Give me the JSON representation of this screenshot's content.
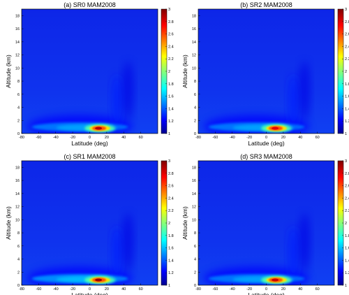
{
  "chart_data": [
    {
      "type": "heatmap",
      "title": "(a) SR0 MAM2008",
      "xlabel": "Latitude (deg)",
      "ylabel": "Altitude (km)",
      "xlim": [
        -80,
        80
      ],
      "ylim": [
        0,
        19
      ],
      "xticks": [
        "-80",
        "-60",
        "-40",
        "-20",
        "0",
        "20",
        "40",
        "60"
      ],
      "yticks": [
        "0",
        "2",
        "4",
        "6",
        "8",
        "10",
        "12",
        "14",
        "16",
        "18"
      ],
      "colorbar": {
        "range": [
          1,
          3
        ],
        "colormap": "jet",
        "ticks": [
          "1",
          "1.2",
          "1.4",
          "1.6",
          "1.8",
          "2",
          "2.2",
          "2.4",
          "2.6",
          "2.8",
          "3"
        ]
      },
      "features": [
        {
          "kind": "boundary_layer_band",
          "lat_range": [
            -68,
            45
          ],
          "altitude_km": [
            0.4,
            1.6
          ],
          "value": 1.5
        },
        {
          "kind": "maximum",
          "lat": 12,
          "altitude_km": 0.8,
          "value": 2.9
        },
        {
          "kind": "plume",
          "lat": 32,
          "altitude_km": [
            1,
            9
          ],
          "value": 1.3
        },
        {
          "kind": "plume",
          "lat": 45,
          "altitude_km": [
            2,
            11
          ],
          "value": 1.2
        }
      ]
    },
    {
      "type": "heatmap",
      "title": "(b) SR2 MAM2008",
      "xlabel": "Latitude (deg)",
      "ylabel": "Altitude (km)",
      "xlim": [
        -80,
        80
      ],
      "ylim": [
        0,
        19
      ],
      "xticks": [
        "-80",
        "-60",
        "-40",
        "-20",
        "0",
        "20",
        "40",
        "60"
      ],
      "yticks": [
        "0",
        "2",
        "4",
        "6",
        "8",
        "10",
        "12",
        "14",
        "16",
        "18"
      ],
      "colorbar": {
        "range": [
          1,
          3
        ],
        "colormap": "jet",
        "ticks": [
          "1",
          "1.2",
          "1.4",
          "1.6",
          "1.8",
          "2",
          "2.2",
          "2.4",
          "2.6",
          "2.8",
          "3"
        ]
      },
      "features": [
        {
          "kind": "boundary_layer_band",
          "lat_range": [
            -68,
            45
          ],
          "altitude_km": [
            0.4,
            1.6
          ],
          "value": 1.5
        },
        {
          "kind": "maximum",
          "lat": 12,
          "altitude_km": 0.8,
          "value": 2.8
        },
        {
          "kind": "plume",
          "lat": 32,
          "altitude_km": [
            1,
            9
          ],
          "value": 1.3
        },
        {
          "kind": "plume",
          "lat": 45,
          "altitude_km": [
            2,
            11
          ],
          "value": 1.2
        }
      ]
    },
    {
      "type": "heatmap",
      "title": "(c) SR1 MAM2008",
      "xlabel": "Latitude (deg)",
      "ylabel": "Altitude (km)",
      "xlim": [
        -80,
        80
      ],
      "ylim": [
        0,
        19
      ],
      "xticks": [
        "-80",
        "-60",
        "-40",
        "-20",
        "0",
        "20",
        "40",
        "60"
      ],
      "yticks": [
        "0",
        "2",
        "4",
        "6",
        "8",
        "10",
        "12",
        "14",
        "16",
        "18"
      ],
      "colorbar": {
        "range": [
          1,
          3
        ],
        "colormap": "jet",
        "ticks": [
          "1",
          "1.2",
          "1.4",
          "1.6",
          "1.8",
          "2",
          "2.2",
          "2.4",
          "2.6",
          "2.8",
          "3"
        ]
      },
      "features": [
        {
          "kind": "boundary_layer_band",
          "lat_range": [
            -68,
            45
          ],
          "altitude_km": [
            0.4,
            1.6
          ],
          "value": 1.55
        },
        {
          "kind": "maximum",
          "lat": 12,
          "altitude_km": 0.8,
          "value": 2.95
        },
        {
          "kind": "plume",
          "lat": 32,
          "altitude_km": [
            1,
            9
          ],
          "value": 1.3
        },
        {
          "kind": "plume",
          "lat": 45,
          "altitude_km": [
            2,
            11
          ],
          "value": 1.2
        }
      ]
    },
    {
      "type": "heatmap",
      "title": "(d) SR3 MAM2008",
      "xlabel": "Latitude (deg)",
      "ylabel": "Altitude (km)",
      "xlim": [
        -80,
        80
      ],
      "ylim": [
        0,
        19
      ],
      "xticks": [
        "-80",
        "-60",
        "-40",
        "-20",
        "0",
        "20",
        "40",
        "60"
      ],
      "yticks": [
        "0",
        "2",
        "4",
        "6",
        "8",
        "10",
        "12",
        "14",
        "16",
        "18"
      ],
      "colorbar": {
        "range": [
          1,
          3
        ],
        "colormap": "jet",
        "ticks": [
          "1",
          "1.2",
          "1.4",
          "1.6",
          "1.8",
          "2",
          "2.2",
          "2.4",
          "2.6",
          "2.8",
          "3"
        ]
      },
      "features": [
        {
          "kind": "boundary_layer_band",
          "lat_range": [
            -68,
            45
          ],
          "altitude_km": [
            0.4,
            1.6
          ],
          "value": 1.5
        },
        {
          "kind": "maximum",
          "lat": 12,
          "altitude_km": 0.8,
          "value": 2.85
        },
        {
          "kind": "plume",
          "lat": 32,
          "altitude_km": [
            1,
            9
          ],
          "value": 1.3
        },
        {
          "kind": "plume",
          "lat": 45,
          "altitude_km": [
            2,
            11
          ],
          "value": 1.2
        }
      ]
    }
  ]
}
